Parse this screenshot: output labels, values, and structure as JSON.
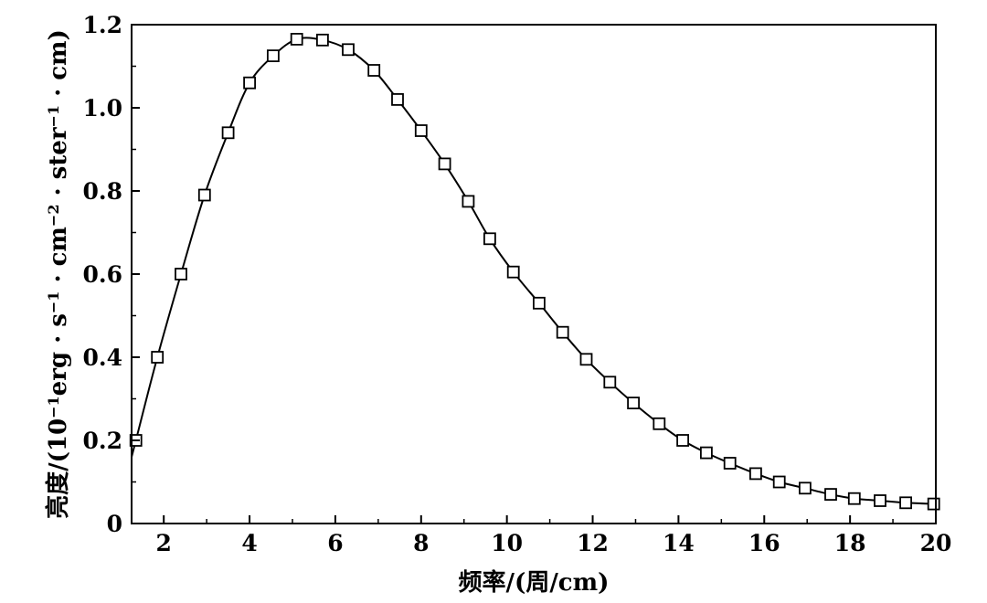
{
  "chart_data": {
    "type": "line",
    "title": "",
    "xlabel": "频率/(周/cm)",
    "ylabel_parts": [
      {
        "text": "亮度/(10",
        "sup": false
      },
      {
        "text": "−1",
        "sup": true
      },
      {
        "text": "erg · s",
        "sup": false
      },
      {
        "text": "−1",
        "sup": true
      },
      {
        "text": " · cm",
        "sup": false
      },
      {
        "text": "−2",
        "sup": true
      },
      {
        "text": " · ster",
        "sup": false
      },
      {
        "text": "−1",
        "sup": true
      },
      {
        "text": " · cm)",
        "sup": false
      }
    ],
    "xlim": [
      1.25,
      20
    ],
    "ylim": [
      0,
      1.2
    ],
    "xticks": [
      2,
      4,
      6,
      8,
      10,
      12,
      14,
      16,
      18,
      20
    ],
    "yticks": [
      0,
      0.2,
      0.4,
      0.6,
      0.8,
      1.0,
      1.2
    ],
    "xtick_labels": [
      "2",
      "4",
      "6",
      "8",
      "10",
      "12",
      "14",
      "16",
      "18",
      "20"
    ],
    "ytick_labels": [
      "0",
      "0.2",
      "0.4",
      "0.6",
      "0.8",
      "1.0",
      "1.2"
    ],
    "grid": false,
    "legend": "none",
    "line_color": "#000000",
    "marker": "open-square",
    "curve_start": [
      1.25,
      0.16
    ],
    "series": [
      {
        "x": [
          1.35,
          1.85,
          2.4,
          2.95,
          3.5,
          4.0,
          4.55,
          5.1,
          5.7,
          6.3,
          6.9,
          7.45,
          8.0,
          8.55,
          9.1,
          9.6,
          10.15,
          10.75,
          11.3,
          11.85,
          12.4,
          12.95,
          13.55,
          14.1,
          14.65,
          15.2,
          15.8,
          16.35,
          16.95,
          17.55,
          18.1,
          18.7,
          19.3,
          19.95
        ],
        "y": [
          0.2,
          0.4,
          0.6,
          0.79,
          0.94,
          1.06,
          1.125,
          1.165,
          1.163,
          1.14,
          1.09,
          1.02,
          0.945,
          0.865,
          0.775,
          0.685,
          0.605,
          0.53,
          0.46,
          0.395,
          0.34,
          0.29,
          0.24,
          0.2,
          0.17,
          0.145,
          0.12,
          0.1,
          0.085,
          0.07,
          0.06,
          0.055,
          0.05,
          0.047
        ]
      }
    ]
  }
}
